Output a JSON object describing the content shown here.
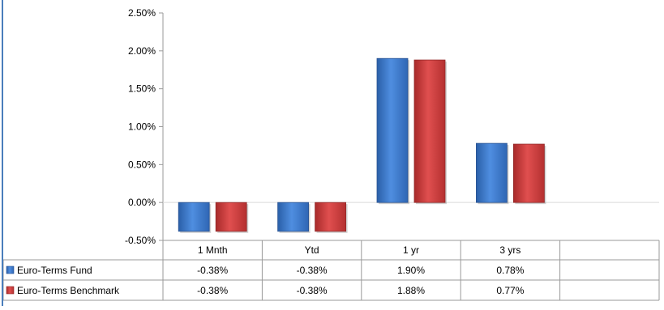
{
  "chart_data": {
    "type": "bar",
    "categories": [
      "1 Mnth",
      "Ytd",
      "1 yr",
      "3 yrs"
    ],
    "series": [
      {
        "name": "Euro-Terms Fund",
        "values": [
          -0.38,
          -0.38,
          1.9,
          0.78
        ],
        "labels": [
          "-0.38%",
          "-0.38%",
          "1.90%",
          "0.78%"
        ],
        "color": "#3f7fcf"
      },
      {
        "name": "Euro-Terms Benchmark",
        "values": [
          -0.38,
          -0.38,
          1.88,
          0.77
        ],
        "labels": [
          "-0.38%",
          "-0.38%",
          "1.88%",
          "0.77%"
        ],
        "color": "#cf3f3f"
      }
    ],
    "yticks": [
      "2.50%",
      "2.00%",
      "1.50%",
      "1.00%",
      "0.50%",
      "0.00%",
      "-0.50%"
    ],
    "ylim": [
      -0.5,
      2.5
    ],
    "grid": false,
    "legend": "data-table"
  }
}
